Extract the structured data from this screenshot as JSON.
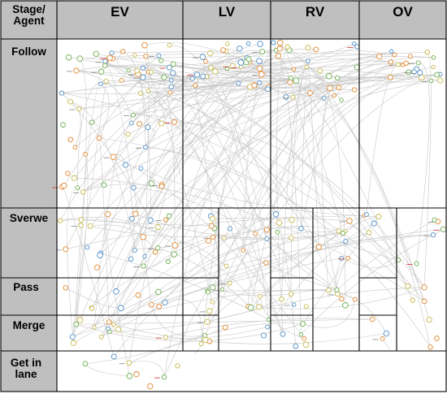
{
  "table": {
    "corner_label": "Stage/\nAgent",
    "corner_line1": "Stage/",
    "corner_line2": "Agent",
    "columns": [
      {
        "id": "ev",
        "label": "EV"
      },
      {
        "id": "lv",
        "label": "LV"
      },
      {
        "id": "rv",
        "label": "RV"
      },
      {
        "id": "ov",
        "label": "OV"
      }
    ],
    "rows": [
      {
        "id": "follow",
        "label": "Follow"
      },
      {
        "id": "swerve",
        "label": "Sverwe"
      },
      {
        "id": "pass",
        "label": "Pass"
      },
      {
        "id": "merge",
        "label": "Merge"
      },
      {
        "id": "get-in-lane",
        "label_line1": "Get in",
        "label_line2": "lane"
      }
    ]
  },
  "colors": {
    "header_bg": "#bfbfbf",
    "stage_col_bg": "#bfbfbf",
    "grid_line": "#000000",
    "edge": "#c8c8c8",
    "node_yellow": "#c8b84a",
    "node_green": "#6cae4f",
    "node_blue": "#4f8fc8",
    "node_orange": "#e0872c",
    "node_red_text": "#d03030"
  }
}
